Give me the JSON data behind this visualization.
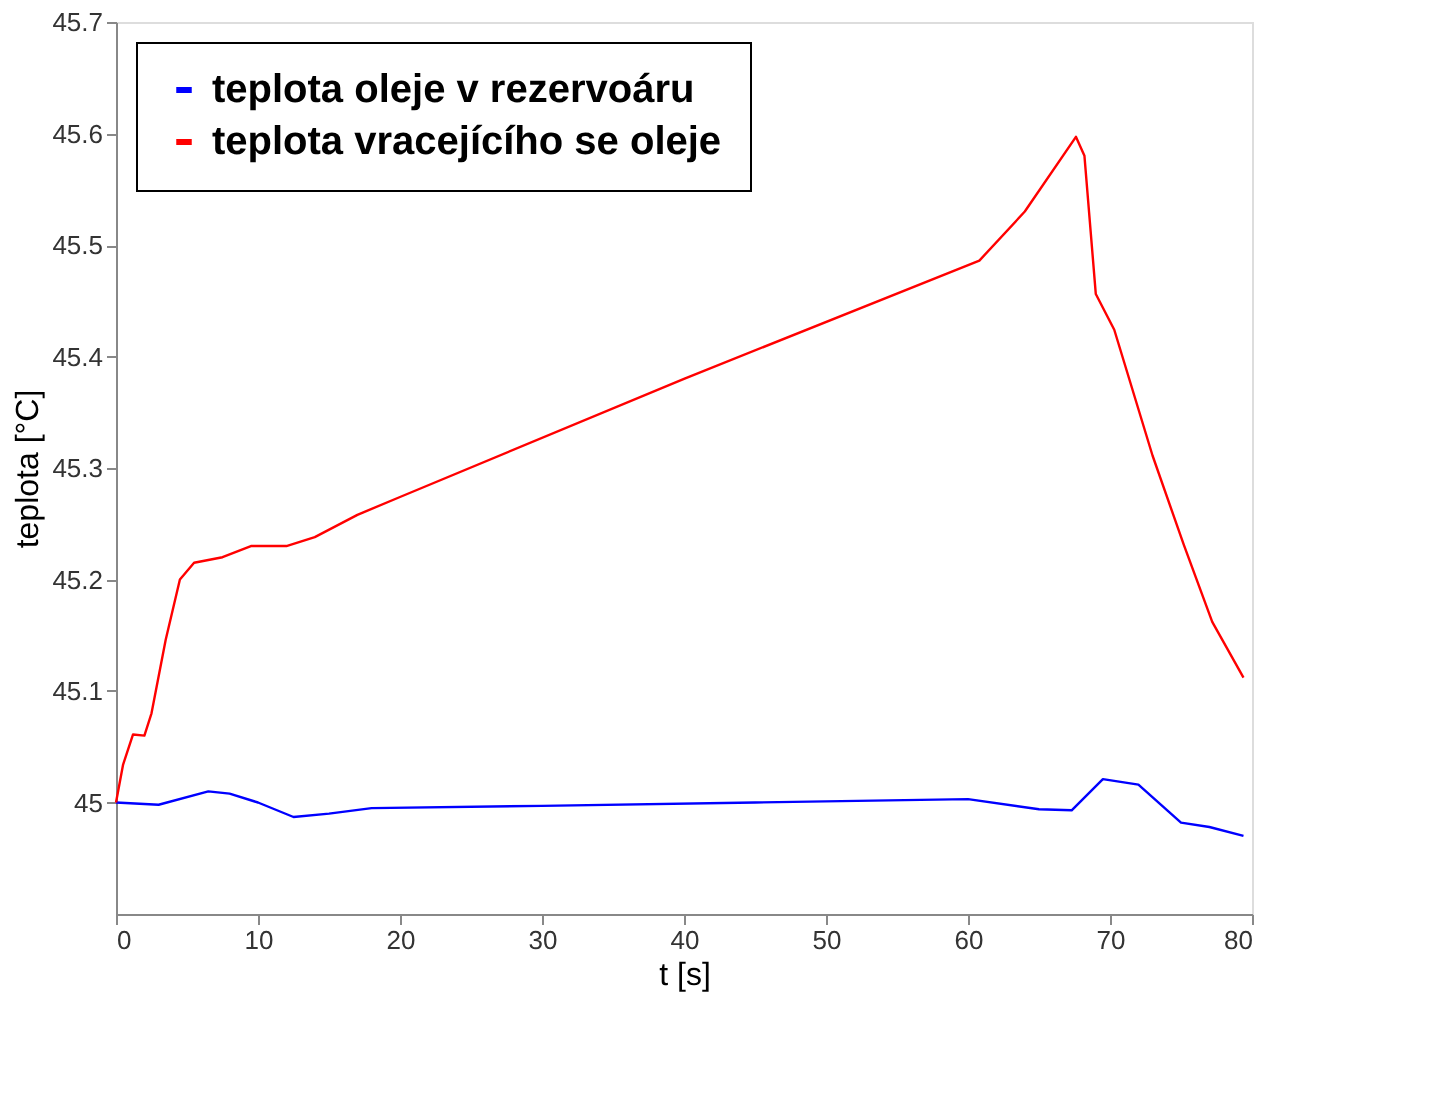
{
  "chart_data": {
    "type": "line",
    "xlabel": "t [s]",
    "ylabel": "teplota [°C]",
    "xlim": [
      0,
      80
    ],
    "xticks": [
      0,
      10,
      20,
      30,
      40,
      50,
      60,
      70,
      80
    ],
    "ylim": [
      44.9,
      45.7
    ],
    "yticks": [
      45,
      45.1,
      45.2,
      45.3,
      45.4,
      45.5,
      45.6,
      45.7
    ],
    "grid": false,
    "legend": "top left",
    "marker": "none",
    "line_style": "solid",
    "series": [
      {
        "name": "teplota oleje v rezervoáru",
        "color": "#0000ff",
        "x": [
          0,
          3,
          6.5,
          8,
          10,
          12.5,
          15,
          18,
          30,
          45,
          60,
          65,
          67.3,
          69.5,
          72,
          75,
          77,
          79.4
        ],
        "values": [
          45.0,
          44.998,
          45.01,
          45.008,
          45.0,
          44.987,
          44.99,
          44.995,
          44.997,
          45.0,
          45.003,
          44.994,
          44.993,
          45.021,
          45.016,
          44.982,
          44.978,
          44.97
        ]
      },
      {
        "name": "teplota vracejícího se oleje",
        "color": "#ff0000",
        "x": [
          0,
          0.5,
          1.2,
          2,
          2.5,
          3.5,
          4.5,
          5.5,
          7.5,
          9.5,
          12,
          14,
          17,
          20,
          40,
          60.8,
          64,
          67.6,
          68.2,
          69,
          70.3,
          73,
          75.2,
          77.2,
          79.4
        ],
        "values": [
          45.0,
          45.034,
          45.061,
          45.06,
          45.08,
          45.146,
          45.2,
          45.215,
          45.22,
          45.23,
          45.23,
          45.238,
          45.258,
          45.274,
          45.38,
          45.486,
          45.53,
          45.597,
          45.58,
          45.456,
          45.424,
          45.311,
          45.231,
          45.162,
          45.112
        ]
      }
    ]
  }
}
